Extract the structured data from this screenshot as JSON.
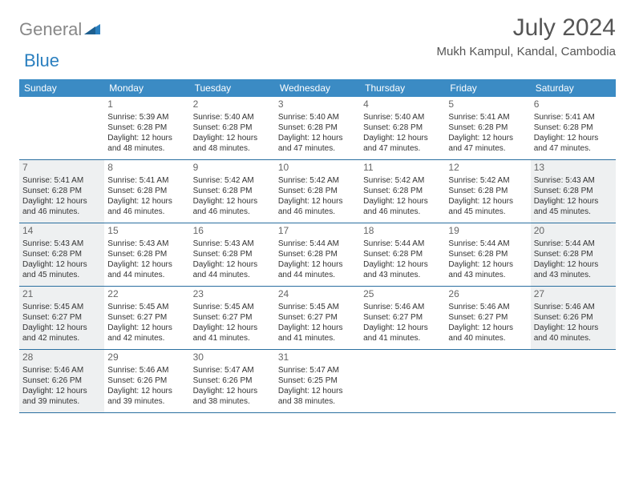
{
  "logo": {
    "text1": "General",
    "text2": "Blue"
  },
  "title": "July 2024",
  "location": "Mukh Kampul, Kandal, Cambodia",
  "colors": {
    "header_bg": "#3b8bc4",
    "header_text": "#ffffff",
    "cell_text": "#333333",
    "daynum_text": "#666666",
    "shaded_bg": "#eef0f1",
    "border": "#2a6fa0",
    "logo_gray": "#888888",
    "logo_blue": "#2a7fbf"
  },
  "weekdays": [
    "Sunday",
    "Monday",
    "Tuesday",
    "Wednesday",
    "Thursday",
    "Friday",
    "Saturday"
  ],
  "weeks": [
    [
      {
        "day": "",
        "sunrise": "",
        "sunset": "",
        "daylight": "",
        "shaded": false
      },
      {
        "day": "1",
        "sunrise": "Sunrise: 5:39 AM",
        "sunset": "Sunset: 6:28 PM",
        "daylight": "Daylight: 12 hours and 48 minutes.",
        "shaded": false
      },
      {
        "day": "2",
        "sunrise": "Sunrise: 5:40 AM",
        "sunset": "Sunset: 6:28 PM",
        "daylight": "Daylight: 12 hours and 48 minutes.",
        "shaded": false
      },
      {
        "day": "3",
        "sunrise": "Sunrise: 5:40 AM",
        "sunset": "Sunset: 6:28 PM",
        "daylight": "Daylight: 12 hours and 47 minutes.",
        "shaded": false
      },
      {
        "day": "4",
        "sunrise": "Sunrise: 5:40 AM",
        "sunset": "Sunset: 6:28 PM",
        "daylight": "Daylight: 12 hours and 47 minutes.",
        "shaded": false
      },
      {
        "day": "5",
        "sunrise": "Sunrise: 5:41 AM",
        "sunset": "Sunset: 6:28 PM",
        "daylight": "Daylight: 12 hours and 47 minutes.",
        "shaded": false
      },
      {
        "day": "6",
        "sunrise": "Sunrise: 5:41 AM",
        "sunset": "Sunset: 6:28 PM",
        "daylight": "Daylight: 12 hours and 47 minutes.",
        "shaded": false
      }
    ],
    [
      {
        "day": "7",
        "sunrise": "Sunrise: 5:41 AM",
        "sunset": "Sunset: 6:28 PM",
        "daylight": "Daylight: 12 hours and 46 minutes.",
        "shaded": true
      },
      {
        "day": "8",
        "sunrise": "Sunrise: 5:41 AM",
        "sunset": "Sunset: 6:28 PM",
        "daylight": "Daylight: 12 hours and 46 minutes.",
        "shaded": false
      },
      {
        "day": "9",
        "sunrise": "Sunrise: 5:42 AM",
        "sunset": "Sunset: 6:28 PM",
        "daylight": "Daylight: 12 hours and 46 minutes.",
        "shaded": false
      },
      {
        "day": "10",
        "sunrise": "Sunrise: 5:42 AM",
        "sunset": "Sunset: 6:28 PM",
        "daylight": "Daylight: 12 hours and 46 minutes.",
        "shaded": false
      },
      {
        "day": "11",
        "sunrise": "Sunrise: 5:42 AM",
        "sunset": "Sunset: 6:28 PM",
        "daylight": "Daylight: 12 hours and 46 minutes.",
        "shaded": false
      },
      {
        "day": "12",
        "sunrise": "Sunrise: 5:42 AM",
        "sunset": "Sunset: 6:28 PM",
        "daylight": "Daylight: 12 hours and 45 minutes.",
        "shaded": false
      },
      {
        "day": "13",
        "sunrise": "Sunrise: 5:43 AM",
        "sunset": "Sunset: 6:28 PM",
        "daylight": "Daylight: 12 hours and 45 minutes.",
        "shaded": true
      }
    ],
    [
      {
        "day": "14",
        "sunrise": "Sunrise: 5:43 AM",
        "sunset": "Sunset: 6:28 PM",
        "daylight": "Daylight: 12 hours and 45 minutes.",
        "shaded": true
      },
      {
        "day": "15",
        "sunrise": "Sunrise: 5:43 AM",
        "sunset": "Sunset: 6:28 PM",
        "daylight": "Daylight: 12 hours and 44 minutes.",
        "shaded": false
      },
      {
        "day": "16",
        "sunrise": "Sunrise: 5:43 AM",
        "sunset": "Sunset: 6:28 PM",
        "daylight": "Daylight: 12 hours and 44 minutes.",
        "shaded": false
      },
      {
        "day": "17",
        "sunrise": "Sunrise: 5:44 AM",
        "sunset": "Sunset: 6:28 PM",
        "daylight": "Daylight: 12 hours and 44 minutes.",
        "shaded": false
      },
      {
        "day": "18",
        "sunrise": "Sunrise: 5:44 AM",
        "sunset": "Sunset: 6:28 PM",
        "daylight": "Daylight: 12 hours and 43 minutes.",
        "shaded": false
      },
      {
        "day": "19",
        "sunrise": "Sunrise: 5:44 AM",
        "sunset": "Sunset: 6:28 PM",
        "daylight": "Daylight: 12 hours and 43 minutes.",
        "shaded": false
      },
      {
        "day": "20",
        "sunrise": "Sunrise: 5:44 AM",
        "sunset": "Sunset: 6:28 PM",
        "daylight": "Daylight: 12 hours and 43 minutes.",
        "shaded": true
      }
    ],
    [
      {
        "day": "21",
        "sunrise": "Sunrise: 5:45 AM",
        "sunset": "Sunset: 6:27 PM",
        "daylight": "Daylight: 12 hours and 42 minutes.",
        "shaded": true
      },
      {
        "day": "22",
        "sunrise": "Sunrise: 5:45 AM",
        "sunset": "Sunset: 6:27 PM",
        "daylight": "Daylight: 12 hours and 42 minutes.",
        "shaded": false
      },
      {
        "day": "23",
        "sunrise": "Sunrise: 5:45 AM",
        "sunset": "Sunset: 6:27 PM",
        "daylight": "Daylight: 12 hours and 41 minutes.",
        "shaded": false
      },
      {
        "day": "24",
        "sunrise": "Sunrise: 5:45 AM",
        "sunset": "Sunset: 6:27 PM",
        "daylight": "Daylight: 12 hours and 41 minutes.",
        "shaded": false
      },
      {
        "day": "25",
        "sunrise": "Sunrise: 5:46 AM",
        "sunset": "Sunset: 6:27 PM",
        "daylight": "Daylight: 12 hours and 41 minutes.",
        "shaded": false
      },
      {
        "day": "26",
        "sunrise": "Sunrise: 5:46 AM",
        "sunset": "Sunset: 6:27 PM",
        "daylight": "Daylight: 12 hours and 40 minutes.",
        "shaded": false
      },
      {
        "day": "27",
        "sunrise": "Sunrise: 5:46 AM",
        "sunset": "Sunset: 6:26 PM",
        "daylight": "Daylight: 12 hours and 40 minutes.",
        "shaded": true
      }
    ],
    [
      {
        "day": "28",
        "sunrise": "Sunrise: 5:46 AM",
        "sunset": "Sunset: 6:26 PM",
        "daylight": "Daylight: 12 hours and 39 minutes.",
        "shaded": true
      },
      {
        "day": "29",
        "sunrise": "Sunrise: 5:46 AM",
        "sunset": "Sunset: 6:26 PM",
        "daylight": "Daylight: 12 hours and 39 minutes.",
        "shaded": false
      },
      {
        "day": "30",
        "sunrise": "Sunrise: 5:47 AM",
        "sunset": "Sunset: 6:26 PM",
        "daylight": "Daylight: 12 hours and 38 minutes.",
        "shaded": false
      },
      {
        "day": "31",
        "sunrise": "Sunrise: 5:47 AM",
        "sunset": "Sunset: 6:25 PM",
        "daylight": "Daylight: 12 hours and 38 minutes.",
        "shaded": false
      },
      {
        "day": "",
        "sunrise": "",
        "sunset": "",
        "daylight": "",
        "shaded": false
      },
      {
        "day": "",
        "sunrise": "",
        "sunset": "",
        "daylight": "",
        "shaded": false
      },
      {
        "day": "",
        "sunrise": "",
        "sunset": "",
        "daylight": "",
        "shaded": false
      }
    ]
  ]
}
